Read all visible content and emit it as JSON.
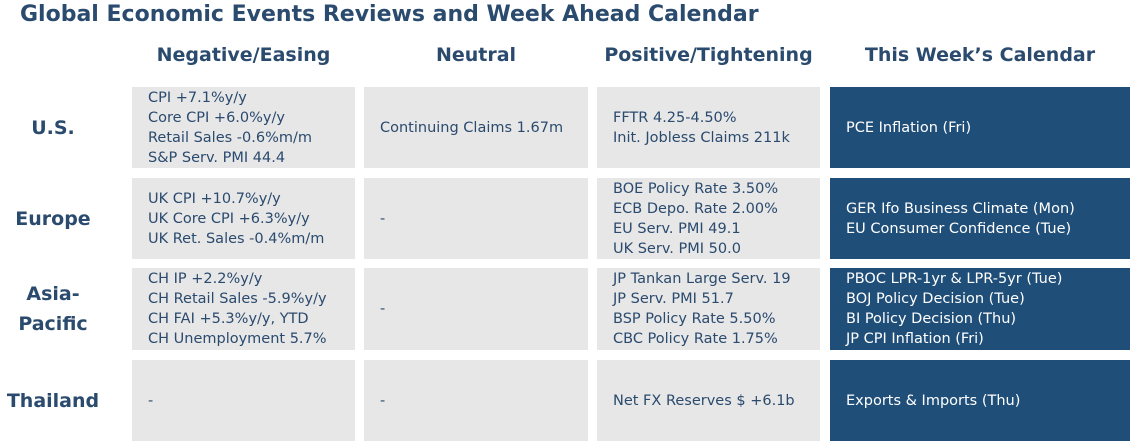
{
  "header": {
    "title": "Global Economic Events Reviews and Week Ahead Calendar"
  },
  "table": {
    "columns": [
      "Negative/Easing",
      "Neutral",
      "Positive/Tightening",
      "This Week’s Calendar"
    ],
    "rows": [
      {
        "label": [
          "U.S."
        ],
        "cells": [
          [
            "CPI +7.1%y/y",
            "Core CPI +6.0%y/y",
            "Retail Sales -0.6%m/m",
            "S&P Serv. PMI 44.4"
          ],
          [
            "Continuing Claims 1.67m"
          ],
          [
            "FFTR 4.25-4.50%",
            "Init. Jobless Claims 211k"
          ],
          [
            "PCE Inflation (Fri)"
          ]
        ]
      },
      {
        "label": [
          "Europe"
        ],
        "cells": [
          [
            "UK CPI +10.7%y/y",
            "UK Core CPI +6.3%y/y",
            "UK Ret. Sales -0.4%m/m"
          ],
          [
            "-"
          ],
          [
            "BOE Policy Rate 3.50%",
            "ECB Depo. Rate 2.00%",
            "EU Serv. PMI 49.1",
            "UK Serv. PMI 50.0"
          ],
          [
            "GER Ifo Business Climate (Mon)",
            "EU Consumer Confidence (Tue)"
          ]
        ]
      },
      {
        "label": [
          "Asia-",
          "Pacific"
        ],
        "cells": [
          [
            "CH IP +2.2%y/y",
            "CH Retail Sales -5.9%y/y",
            "CH FAI +5.3%y/y, YTD",
            "CH Unemployment 5.7%"
          ],
          [
            "-"
          ],
          [
            "JP Tankan Large Serv. 19",
            "JP Serv. PMI 51.7",
            "BSP Policy Rate 5.50%",
            "CBC Policy Rate 1.75%"
          ],
          [
            "PBOC LPR-1yr & LPR-5yr (Tue)",
            "BOJ Policy Decision (Tue)",
            "BI Policy Decision (Thu)",
            "JP CPI Inflation (Fri)"
          ]
        ]
      },
      {
        "label": [
          "Thailand"
        ],
        "cells": [
          [
            "-"
          ],
          [
            "-"
          ],
          [
            "Net FX Reserves $ +6.1b"
          ],
          [
            "Exports & Imports (Thu)"
          ]
        ]
      }
    ]
  }
}
